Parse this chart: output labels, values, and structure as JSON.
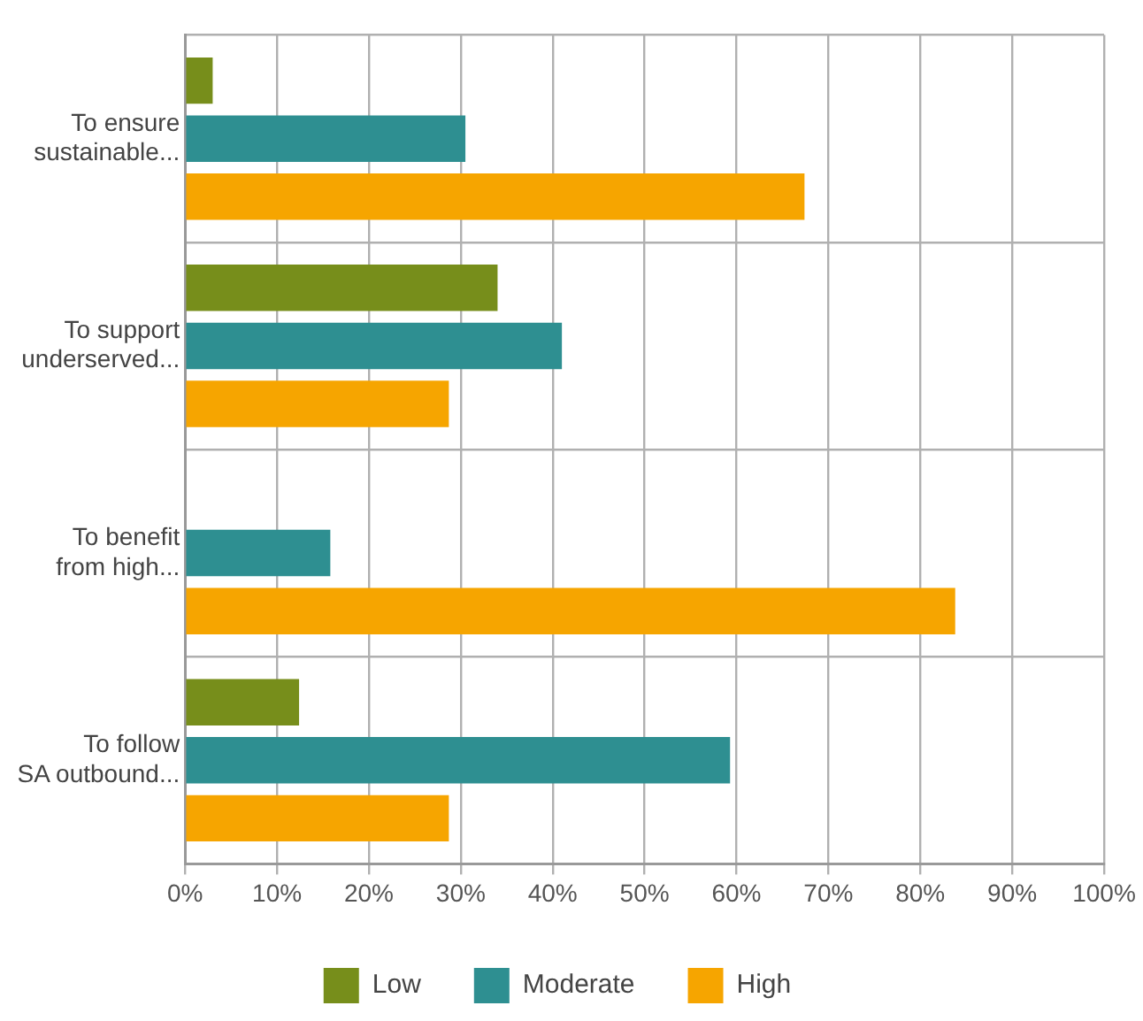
{
  "chart_data": {
    "type": "bar",
    "orientation": "horizontal",
    "categories": [
      "To ensure sustainable...",
      "To support underserved...",
      "To benefit from high...",
      "To follow SA outbound..."
    ],
    "series": [
      {
        "name": "Low",
        "color": "#778e1b",
        "values": [
          3.0,
          34.0,
          0,
          12.4
        ]
      },
      {
        "name": "Moderate",
        "color": "#2e8f91",
        "values": [
          30.5,
          41.0,
          15.8,
          59.3
        ]
      },
      {
        "name": "High",
        "color": "#f6a500",
        "values": [
          67.4,
          28.7,
          83.8,
          28.7
        ]
      }
    ],
    "xlim": [
      0,
      100
    ],
    "xticks": [
      {
        "value": 0,
        "label": "0%"
      },
      {
        "value": 10,
        "label": "10%"
      },
      {
        "value": 20,
        "label": "20%"
      },
      {
        "value": 30,
        "label": "30%"
      },
      {
        "value": 40,
        "label": "40%"
      },
      {
        "value": 50,
        "label": "50%"
      },
      {
        "value": 60,
        "label": "60%"
      },
      {
        "value": 70,
        "label": "70%"
      },
      {
        "value": 80,
        "label": "80%"
      },
      {
        "value": 90,
        "label": "90%"
      },
      {
        "value": 100,
        "label": "100%"
      }
    ],
    "grid": true,
    "legend": "bottom"
  }
}
